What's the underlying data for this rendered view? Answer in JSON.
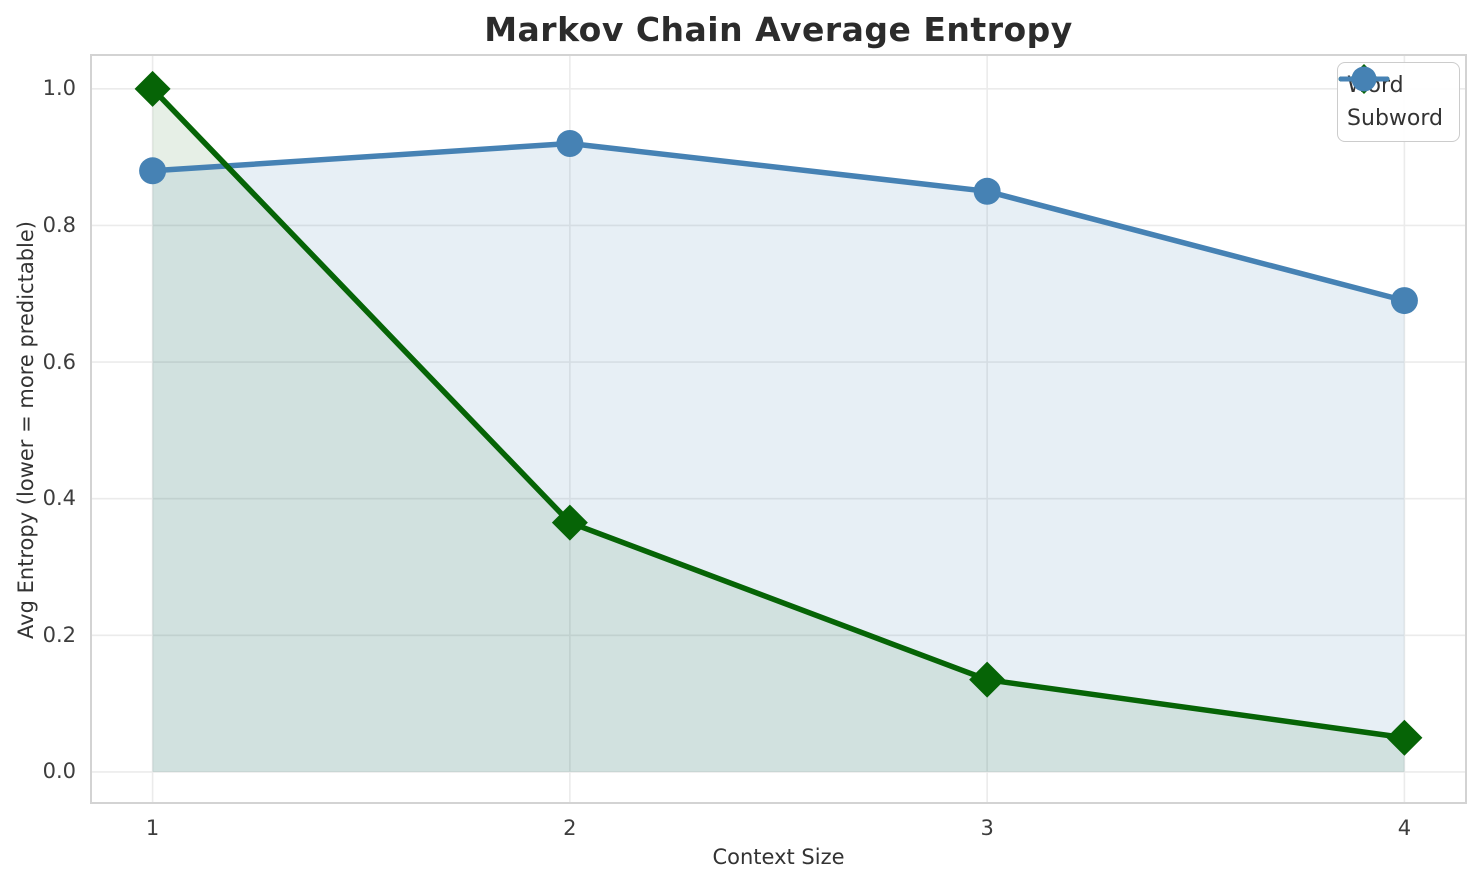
{
  "chart_data": {
    "type": "line",
    "title": "Markov Chain Average Entropy",
    "xlabel": "Context Size",
    "ylabel": "Avg Entropy (lower = more predictable)",
    "x": [
      1,
      2,
      3,
      4
    ],
    "series": [
      {
        "name": "Word",
        "values": [
          1.0,
          0.365,
          0.135,
          0.05
        ],
        "color": "#066406",
        "marker": "diamond",
        "fill_opacity": 0.1
      },
      {
        "name": "Subword",
        "values": [
          0.88,
          0.92,
          0.85,
          0.69
        ],
        "color": "#4682b4",
        "marker": "circle",
        "fill_opacity": 0.13
      }
    ],
    "xticks": {
      "values": [
        1,
        2,
        3,
        4
      ],
      "labels": [
        "1",
        "2",
        "3",
        "4"
      ]
    },
    "yticks": {
      "values": [
        0.0,
        0.2,
        0.4,
        0.6,
        0.8,
        1.0
      ],
      "labels": [
        "0.0",
        "0.2",
        "0.4",
        "0.6",
        "0.8",
        "1.0"
      ]
    },
    "xlim": [
      0.85,
      4.15
    ],
    "ylim": [
      -0.047,
      1.051
    ],
    "grid": true,
    "area_fill_baseline": 0,
    "legend_position": "upper right",
    "colors": {
      "grid": "#ebebeb",
      "spine": "#d3d3d3",
      "tick_text": "#3d3d3d",
      "label_text": "#333333",
      "title_text": "#2b2b2b",
      "background": "#ffffff"
    }
  }
}
